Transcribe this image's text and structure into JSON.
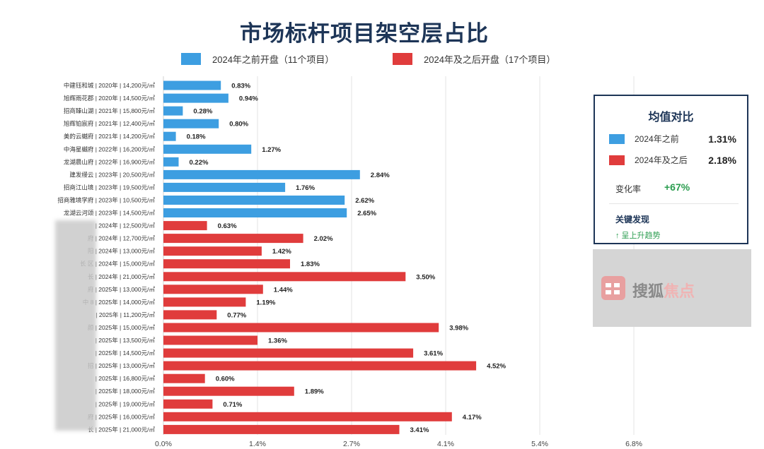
{
  "title": "市场标杆项目架空层占比",
  "legend": {
    "before": {
      "label": "2024年之前开盘（11个项目）",
      "color": "#3d9ee1"
    },
    "after": {
      "label": "2024年及之后开盘（17个项目）",
      "color": "#e03c3c"
    }
  },
  "chart_data": {
    "type": "bar",
    "orientation": "horizontal",
    "title": "市场标杆项目架空层占比",
    "xlim": [
      0,
      8.2
    ],
    "x_ticks": [
      "0.0%",
      "1.4%",
      "2.7%",
      "4.1%",
      "5.4%",
      "6.8%"
    ],
    "x_tick_values": [
      0,
      1.36,
      2.72,
      4.08,
      5.44,
      6.8
    ],
    "grid": true,
    "legend_position": "top",
    "categories": [
      "中建钰和城 | 2020年 | 14,200元/㎡",
      "旭辉雨花郡 | 2020年 | 14,500元/㎡",
      "招商臻山湖 | 2021年 | 15,800元/㎡",
      "旭辉铂宸府 | 2021年 | 12,400元/㎡",
      "美的云樾府 | 2021年 | 14,200元/㎡",
      "中海星樾府 | 2022年 | 16,200元/㎡",
      "龙湖晨山府 | 2022年 | 16,900元/㎡",
      "建发缦云 | 2023年 | 20,500元/㎡",
      "招商江山境 | 2023年 | 19,500元/㎡",
      "招商雅境学府 | 2023年 | 10,500元/㎡",
      "龙湖云河颂 | 2023年 | 14,500元/㎡",
      "| 2024年 | 12,500元/㎡",
      "府 | 2024年 | 12,700元/㎡",
      "阳 | 2024年 | 13,000元/㎡",
      "长 区 | 2024年 | 15,000元/㎡",
      "长 | 2024年 | 21,000元/㎡",
      "府 | 2025年 | 13,000元/㎡",
      "中 8 | 2025年 | 14,000元/㎡",
      "| 2025年 | 11,200元/㎡",
      "颜 | 2025年 | 15,000元/㎡",
      "| 2025年 | 13,500元/㎡",
      "| 2025年 | 14,500元/㎡",
      "招 | 2025年 | 13,000元/㎡",
      "| 2025年 | 16,800元/㎡",
      "| 2025年 | 18,000元/㎡",
      "| 2025年 | 19,000元/㎡",
      "府 | 2025年 | 16,000元/㎡",
      "长 | 2025年 | 21,000元/㎡"
    ],
    "values": [
      0.83,
      0.94,
      0.28,
      0.8,
      0.18,
      1.27,
      0.22,
      2.84,
      1.76,
      2.62,
      2.65,
      0.63,
      2.02,
      1.42,
      1.83,
      3.5,
      1.44,
      1.19,
      0.77,
      3.98,
      1.36,
      3.61,
      4.52,
      0.6,
      1.89,
      0.71,
      4.17,
      3.41
    ],
    "value_labels": [
      "0.83%",
      "0.94%",
      "0.28%",
      "0.80%",
      "0.18%",
      "1.27%",
      "0.22%",
      "2.84%",
      "1.76%",
      "2.62%",
      "2.65%",
      "0.63%",
      "2.02%",
      "1.42%",
      "1.83%",
      "3.50%",
      "1.44%",
      "1.19%",
      "0.77%",
      "3.98%",
      "1.36%",
      "3.61%",
      "4.52%",
      "0.60%",
      "1.89%",
      "0.71%",
      "4.17%",
      "3.41%"
    ],
    "groups": [
      "before",
      "before",
      "before",
      "before",
      "before",
      "before",
      "before",
      "before",
      "before",
      "before",
      "before",
      "after",
      "after",
      "after",
      "after",
      "after",
      "after",
      "after",
      "after",
      "after",
      "after",
      "after",
      "after",
      "after",
      "after",
      "after",
      "after",
      "after"
    ]
  },
  "summary_card": {
    "title": "均值对比",
    "before_label": "2024年之前",
    "before_value": "1.31%",
    "after_label": "2024年及之后",
    "after_value": "2.18%",
    "rate_label": "变化率",
    "rate_value": "+67%",
    "findings_title": "关键发现",
    "findings_text": "↑ 呈上升趋势"
  },
  "watermark": {
    "text_a": "搜狐",
    "text_b": "焦点"
  }
}
